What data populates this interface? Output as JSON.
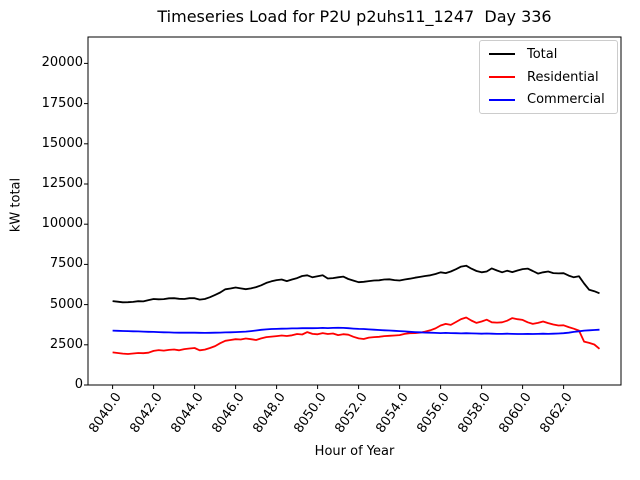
{
  "chart_data": {
    "type": "line",
    "title": "Timeseries Load for P2U p2uhs11_1247  Day 336",
    "xlabel": "Hour of Year",
    "ylabel": "kW total",
    "grid": false,
    "legend_position": "upper right",
    "xlim": [
      8038.8,
      8064.8
    ],
    "ylim": [
      0,
      21640
    ],
    "x_start": 8040.0,
    "x_step": 0.25,
    "xticks": [
      {
        "value": 8040,
        "label": "8040.0"
      },
      {
        "value": 8042,
        "label": "8042.0"
      },
      {
        "value": 8044,
        "label": "8044.0"
      },
      {
        "value": 8046,
        "label": "8046.0"
      },
      {
        "value": 8048,
        "label": "8048.0"
      },
      {
        "value": 8050,
        "label": "8050.0"
      },
      {
        "value": 8052,
        "label": "8052.0"
      },
      {
        "value": 8054,
        "label": "8054.0"
      },
      {
        "value": 8056,
        "label": "8056.0"
      },
      {
        "value": 8058,
        "label": "8058.0"
      },
      {
        "value": 8060,
        "label": "8060.0"
      },
      {
        "value": 8062,
        "label": "8062.0"
      }
    ],
    "yticks": [
      {
        "value": 0,
        "label": "0"
      },
      {
        "value": 2500,
        "label": "2500"
      },
      {
        "value": 5000,
        "label": "5000"
      },
      {
        "value": 7500,
        "label": "7500"
      },
      {
        "value": 10000,
        "label": "10000"
      },
      {
        "value": 12500,
        "label": "12500"
      },
      {
        "value": 15000,
        "label": "15000"
      },
      {
        "value": 17500,
        "label": "17500"
      },
      {
        "value": 20000,
        "label": "20000"
      }
    ],
    "series": [
      {
        "name": "Total",
        "color": "#000000",
        "values": [
          5220,
          5180,
          5140,
          5150,
          5170,
          5210,
          5200,
          5280,
          5350,
          5330,
          5340,
          5390,
          5400,
          5360,
          5350,
          5400,
          5400,
          5310,
          5350,
          5460,
          5600,
          5750,
          5950,
          6000,
          6060,
          6010,
          5960,
          6010,
          6090,
          6200,
          6350,
          6450,
          6520,
          6560,
          6460,
          6560,
          6650,
          6780,
          6820,
          6700,
          6760,
          6820,
          6620,
          6650,
          6700,
          6740,
          6590,
          6490,
          6390,
          6420,
          6460,
          6500,
          6510,
          6560,
          6570,
          6520,
          6500,
          6560,
          6610,
          6670,
          6720,
          6780,
          6820,
          6900,
          7010,
          6960,
          7060,
          7200,
          7360,
          7420,
          7240,
          7090,
          7010,
          7060,
          7250,
          7120,
          7010,
          7110,
          7020,
          7120,
          7210,
          7240,
          7090,
          6930,
          7010,
          7060,
          6960,
          6940,
          6950,
          6800,
          6700,
          6760,
          6310,
          5920,
          5830,
          5700
        ]
      },
      {
        "name": "Residential",
        "color": "#ff0000",
        "values": [
          2030,
          1990,
          1950,
          1930,
          1960,
          1990,
          1980,
          2010,
          2120,
          2170,
          2140,
          2180,
          2210,
          2160,
          2230,
          2270,
          2300,
          2160,
          2200,
          2300,
          2420,
          2600,
          2750,
          2800,
          2850,
          2830,
          2890,
          2850,
          2800,
          2900,
          2980,
          3010,
          3040,
          3080,
          3050,
          3090,
          3170,
          3140,
          3290,
          3180,
          3150,
          3230,
          3170,
          3200,
          3100,
          3160,
          3130,
          3000,
          2900,
          2860,
          2950,
          2980,
          3000,
          3040,
          3060,
          3080,
          3100,
          3180,
          3220,
          3230,
          3260,
          3320,
          3400,
          3520,
          3700,
          3800,
          3740,
          3920,
          4100,
          4200,
          4010,
          3860,
          3950,
          4060,
          3900,
          3880,
          3900,
          4000,
          4160,
          4090,
          4050,
          3900,
          3800,
          3860,
          3950,
          3850,
          3760,
          3700,
          3710,
          3600,
          3500,
          3380,
          2700,
          2620,
          2520,
          2250
        ]
      },
      {
        "name": "Commercial",
        "color": "#0000ff",
        "values": [
          3380,
          3370,
          3355,
          3350,
          3340,
          3330,
          3320,
          3310,
          3300,
          3290,
          3280,
          3270,
          3260,
          3255,
          3250,
          3250,
          3250,
          3245,
          3240,
          3245,
          3250,
          3260,
          3270,
          3280,
          3290,
          3300,
          3320,
          3350,
          3390,
          3430,
          3460,
          3480,
          3490,
          3500,
          3510,
          3520,
          3520,
          3530,
          3540,
          3530,
          3540,
          3550,
          3540,
          3550,
          3560,
          3550,
          3530,
          3510,
          3490,
          3480,
          3460,
          3440,
          3420,
          3400,
          3390,
          3370,
          3350,
          3330,
          3310,
          3290,
          3280,
          3260,
          3250,
          3240,
          3230,
          3240,
          3230,
          3220,
          3210,
          3220,
          3210,
          3200,
          3190,
          3200,
          3190,
          3180,
          3180,
          3190,
          3180,
          3170,
          3170,
          3180,
          3170,
          3180,
          3190,
          3180,
          3190,
          3200,
          3220,
          3250,
          3300,
          3340,
          3380,
          3400,
          3420,
          3440
        ]
      }
    ]
  }
}
